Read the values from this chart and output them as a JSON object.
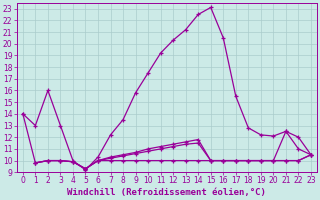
{
  "xlabel": "Windchill (Refroidissement éolien,°C)",
  "bg_color": "#cceae7",
  "grid_color": "#aacccc",
  "line_color": "#990099",
  "xlim": [
    -0.5,
    23.5
  ],
  "ylim": [
    9,
    23.5
  ],
  "xticks": [
    0,
    1,
    2,
    3,
    4,
    5,
    6,
    7,
    8,
    9,
    10,
    11,
    12,
    13,
    14,
    15,
    16,
    17,
    18,
    19,
    20,
    21,
    22,
    23
  ],
  "yticks": [
    9,
    10,
    11,
    12,
    13,
    14,
    15,
    16,
    17,
    18,
    19,
    20,
    21,
    22,
    23
  ],
  "line1_x": [
    0,
    1,
    2,
    3,
    4,
    5,
    6,
    7,
    8,
    9,
    10,
    11,
    12,
    13,
    14,
    15,
    16,
    17,
    18,
    19,
    20,
    21,
    22,
    23
  ],
  "line1_y": [
    14,
    13,
    16,
    13,
    10,
    9.2,
    10.3,
    12.2,
    13.5,
    15.8,
    17.5,
    19.2,
    20.3,
    21.2,
    22.5,
    23.1,
    20.5,
    15.5,
    12.8,
    12.2,
    12.1,
    12.5,
    11.0,
    10.5
  ],
  "line2_x": [
    0,
    1,
    2,
    3,
    4,
    5,
    6,
    7,
    8,
    9,
    10,
    11,
    12,
    13,
    14,
    15,
    16,
    17,
    18,
    19,
    20,
    21,
    22,
    23
  ],
  "line2_y": [
    14,
    9.8,
    10.0,
    10.0,
    9.9,
    9.3,
    10.0,
    10.3,
    10.5,
    10.7,
    11.0,
    11.2,
    11.4,
    11.6,
    11.8,
    10.0,
    10.0,
    10.0,
    10.0,
    10.0,
    10.0,
    12.5,
    12.0,
    10.5
  ],
  "line3_x": [
    1,
    2,
    3,
    4,
    5,
    6,
    7,
    8,
    9,
    10,
    11,
    12,
    13,
    14,
    15,
    16,
    17,
    18,
    19,
    20,
    21,
    22,
    23
  ],
  "line3_y": [
    9.8,
    10.0,
    10.0,
    9.9,
    9.3,
    10.0,
    10.2,
    10.4,
    10.6,
    10.8,
    11.0,
    11.2,
    11.4,
    11.5,
    10.0,
    10.0,
    10.0,
    10.0,
    10.0,
    10.0,
    10.0,
    10.0,
    10.5
  ],
  "line4_x": [
    1,
    2,
    3,
    4,
    5,
    6,
    7,
    8,
    9,
    10,
    11,
    12,
    13,
    14,
    15,
    16,
    17,
    18,
    19,
    20,
    21,
    22,
    23
  ],
  "line4_y": [
    9.8,
    10.0,
    10.0,
    9.9,
    9.3,
    10.0,
    10.0,
    10.0,
    10.0,
    10.0,
    10.0,
    10.0,
    10.0,
    10.0,
    10.0,
    10.0,
    10.0,
    10.0,
    10.0,
    10.0,
    10.0,
    10.0,
    10.5
  ],
  "label_fontsize": 6.5,
  "tick_fontsize": 5.5
}
